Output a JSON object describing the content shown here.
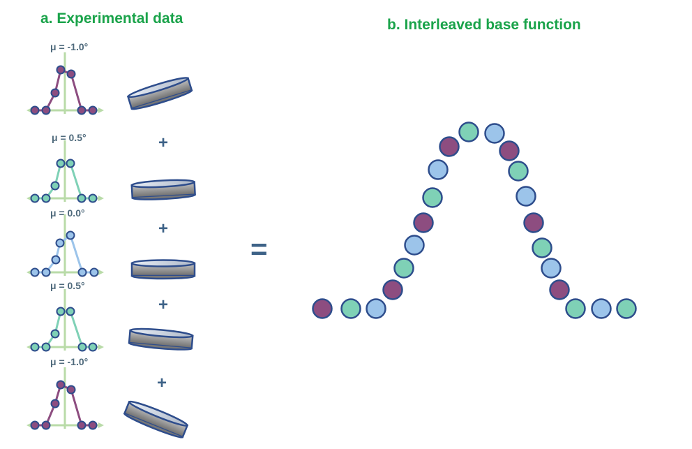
{
  "panel_a": {
    "title": "a. Experimental data",
    "scans": [
      {
        "mu_label": "μ = -1.0°",
        "palette": "purple",
        "sample_tilt_deg": -17
      },
      {
        "mu_label": "μ = 0.5°",
        "palette": "teal",
        "sample_tilt_deg": -3
      },
      {
        "mu_label": "μ = 0.0°",
        "palette": "blue",
        "sample_tilt_deg": 0
      },
      {
        "mu_label": "μ = 0.5°",
        "palette": "teal",
        "sample_tilt_deg": 5
      },
      {
        "mu_label": "μ = -1.0°",
        "palette": "purple",
        "sample_tilt_deg": 22
      }
    ],
    "plus_symbol": "+"
  },
  "equals_symbol": "=",
  "panel_b": {
    "title": "b. Interleaved base function",
    "point_colors": [
      "purple",
      "teal",
      "blue",
      "purple",
      "teal",
      "blue",
      "purple",
      "teal",
      "blue",
      "purple",
      "teal",
      "blue",
      "purple",
      "teal",
      "blue",
      "purple",
      "teal",
      "blue",
      "purple",
      "teal",
      "blue",
      "teal",
      "blue",
      "purple"
    ]
  },
  "colors": {
    "purple": "#8d4d80",
    "teal": "#7fd1b6",
    "blue": "#9cc4ea",
    "outline": "#2e4d8c",
    "title_green": "#1aa34a",
    "axis_green": "#b9dba8"
  }
}
